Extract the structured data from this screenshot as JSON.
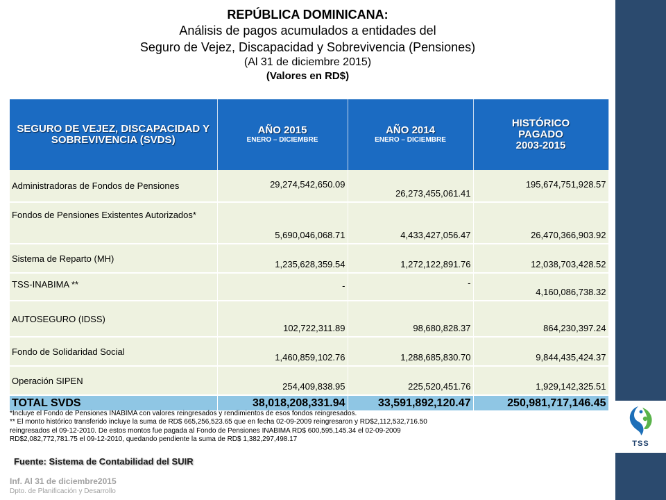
{
  "header": {
    "title": "REPÚBLICA DOMINICANA:",
    "subtitle_line1": "Análisis de pagos acumulados a entidades del",
    "subtitle_line2": "Seguro de Vejez, Discapacidad y Sobrevivencia (Pensiones)",
    "date_note": "(Al 31 de diciembre 2015)",
    "units_note": "(Valores en RD$)"
  },
  "table": {
    "col1": "SEGURO DE VEJEZ, DISCAPACIDAD Y SOBREVIVENCIA (SVDS)",
    "col2_title": "AÑO 2015",
    "col2_sub": "ENERO – DICIEMBRE",
    "col3_title": "AÑO 2014",
    "col3_sub": "ENERO – DICIEMBRE",
    "col4_line1": "HISTÓRICO",
    "col4_line2": "PAGADO",
    "col4_line3": "2003-2015",
    "rows": [
      {
        "label": "Administradoras de Fondos de Pensiones",
        "y2015": "29,274,542,650.09",
        "y2014": "26,273,455,061.41",
        "hist": "195,674,751,928.57"
      },
      {
        "label": "Fondos de Pensiones Existentes Autorizados*",
        "y2015": "5,690,046,068.71",
        "y2014": "4,433,427,056.47",
        "hist": "26,470,366,903.92"
      },
      {
        "label": "Sistema de Reparto (MH)",
        "y2015": "1,235,628,359.54",
        "y2014": "1,272,122,891.76",
        "hist": "12,038,703,428.52"
      },
      {
        "label": "TSS-INABIMA **",
        "y2015": "-",
        "y2014": "-",
        "hist": "4,160,086,738.32"
      },
      {
        "label": "AUTOSEGURO (IDSS)",
        "y2015": "102,722,311.89",
        "y2014": "98,680,828.37",
        "hist": "864,230,397.24"
      },
      {
        "label": "Fondo de Solidaridad Social",
        "y2015": "1,460,859,102.76",
        "y2014": "1,288,685,830.70",
        "hist": "9,844,435,424.37"
      },
      {
        "label": "Operación SIPEN",
        "y2015": "254,409,838.95",
        "y2014": "225,520,451.76",
        "hist": "1,929,142,325.51"
      }
    ],
    "total": {
      "label": "TOTAL SVDS",
      "y2015": "38,018,208,331.94",
      "y2014": "33,591,892,120.47",
      "hist": "250,981,717,146.45"
    }
  },
  "notes": {
    "line1": "*Incluye el Fondo de Pensiones INABIMA con valores reingresados y rendimientos de esos fondos reingresados.",
    "line2": "** El monto histórico transferido incluye la suma de RD$ 665,256,523.65 que en fecha 02-09-2009 reingresaron y RD$2,112,532,716.50",
    "line3": "reingresados el 09-12-2010. De estos montos fue pagada al Fondo de Pensiones INABIMA RD$ 600,595,145.34 el 02-09-2009",
    "line4": "RD$2,082,772,781.75 el 09-12-2010, quedando pendiente la suma de RD$ 1,382,297,498.17"
  },
  "footer": {
    "source": "Fuente: Sistema de Contabilidad del SUIR",
    "inf": "Inf. Al 31 de diciembre2015",
    "dept": "Dpto. de Planificación y Desarrollo",
    "logo_text": "TSS"
  },
  "colors": {
    "header_blue": "#1b6bc2",
    "row_bg": "#eef2e0",
    "total_bg": "#8fc6e4",
    "side_band": "#2b4a6e"
  }
}
